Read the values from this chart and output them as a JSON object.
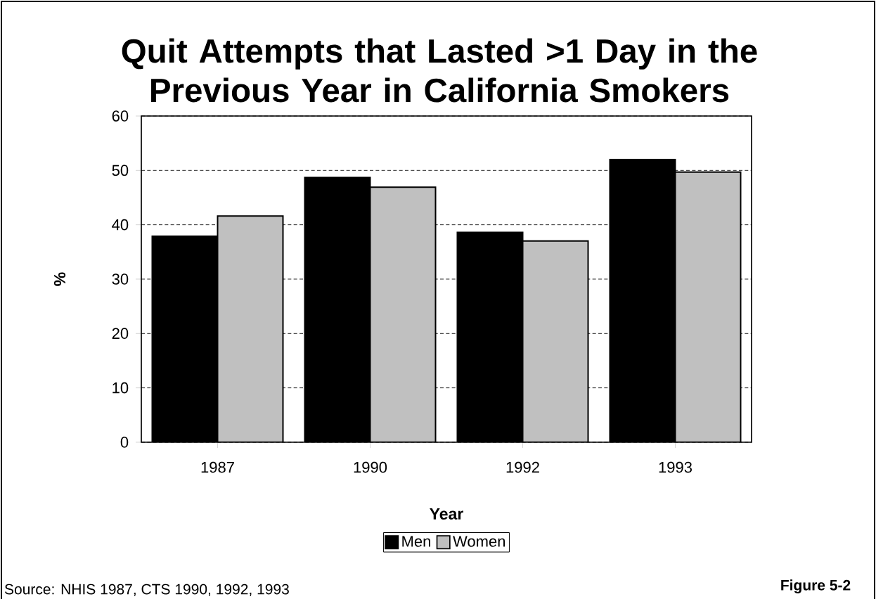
{
  "chart_data": {
    "type": "bar",
    "title": "Quit Attempts that Lasted >1 Day in the Previous Year in California Smokers",
    "xlabel": "Year",
    "ylabel": "%",
    "categories": [
      "1987",
      "1990",
      "1992",
      "1993"
    ],
    "series": [
      {
        "name": "Men",
        "color": "#000000",
        "values": [
          37.9,
          48.7,
          38.6,
          52.0
        ]
      },
      {
        "name": "Women",
        "color": "#c0c0c0",
        "values": [
          41.6,
          46.9,
          37.0,
          49.7
        ]
      }
    ],
    "ylim": [
      0,
      60
    ],
    "yticks": [
      0,
      10,
      20,
      30,
      40,
      50,
      60
    ],
    "grid": "y",
    "legend": "bottom",
    "annotations": [
      "Source: NHIS 1987, CTS 1990, 1992, 1993",
      "Figure 5-2"
    ]
  }
}
